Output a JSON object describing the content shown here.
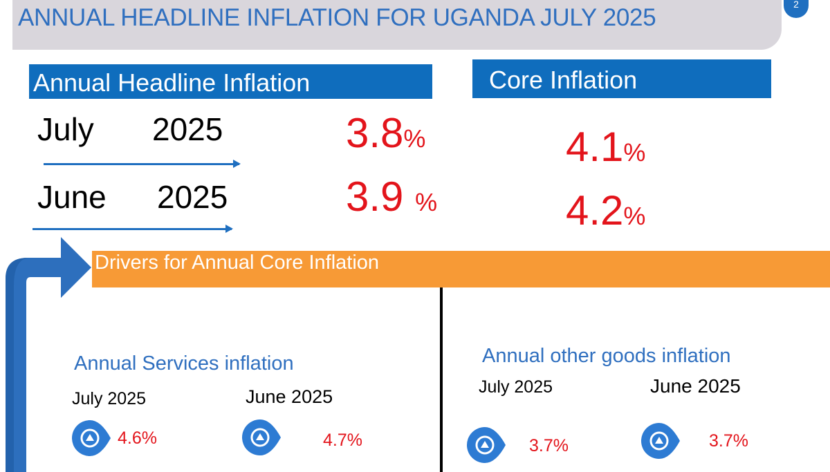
{
  "header": {
    "title": "ANNUAL HEADLINE INFLATION FOR UGANDA JULY 2025",
    "page_number": "2"
  },
  "headline": {
    "label": "Annual Headline Inflation",
    "rows": [
      {
        "month": "July",
        "year": "2025",
        "value": "3.8",
        "unit": "%"
      },
      {
        "month": "June",
        "year": "2025",
        "value": "3.9 ",
        "unit": "%"
      }
    ]
  },
  "core": {
    "label": "Core Inflation",
    "rows": [
      {
        "value": "4.1",
        "unit": "%"
      },
      {
        "value": "4.2",
        "unit": "%"
      }
    ]
  },
  "drivers": {
    "label": "Drivers for Annual Core Inflation",
    "services": {
      "title": "Annual Services inflation",
      "july_label": "July  2025",
      "june_label": "June  2025",
      "july_value": "4.6%",
      "june_value": "4.7%"
    },
    "other_goods": {
      "title": "Annual other goods inflation",
      "july_label": "July 2025",
      "june_label": "June  2025",
      "july_value": "3.7%",
      "june_value": "3.7%"
    }
  },
  "colors": {
    "title_text": "#2f6fbf",
    "header_box": "#0f6dbd",
    "value_red": "#e3141b",
    "drivers_orange": "#f79a36",
    "pin_blue": "#2d7bd3"
  },
  "icons": {
    "bent_arrow": "bent-arrow-icon",
    "pin": "location-pin-icon"
  }
}
